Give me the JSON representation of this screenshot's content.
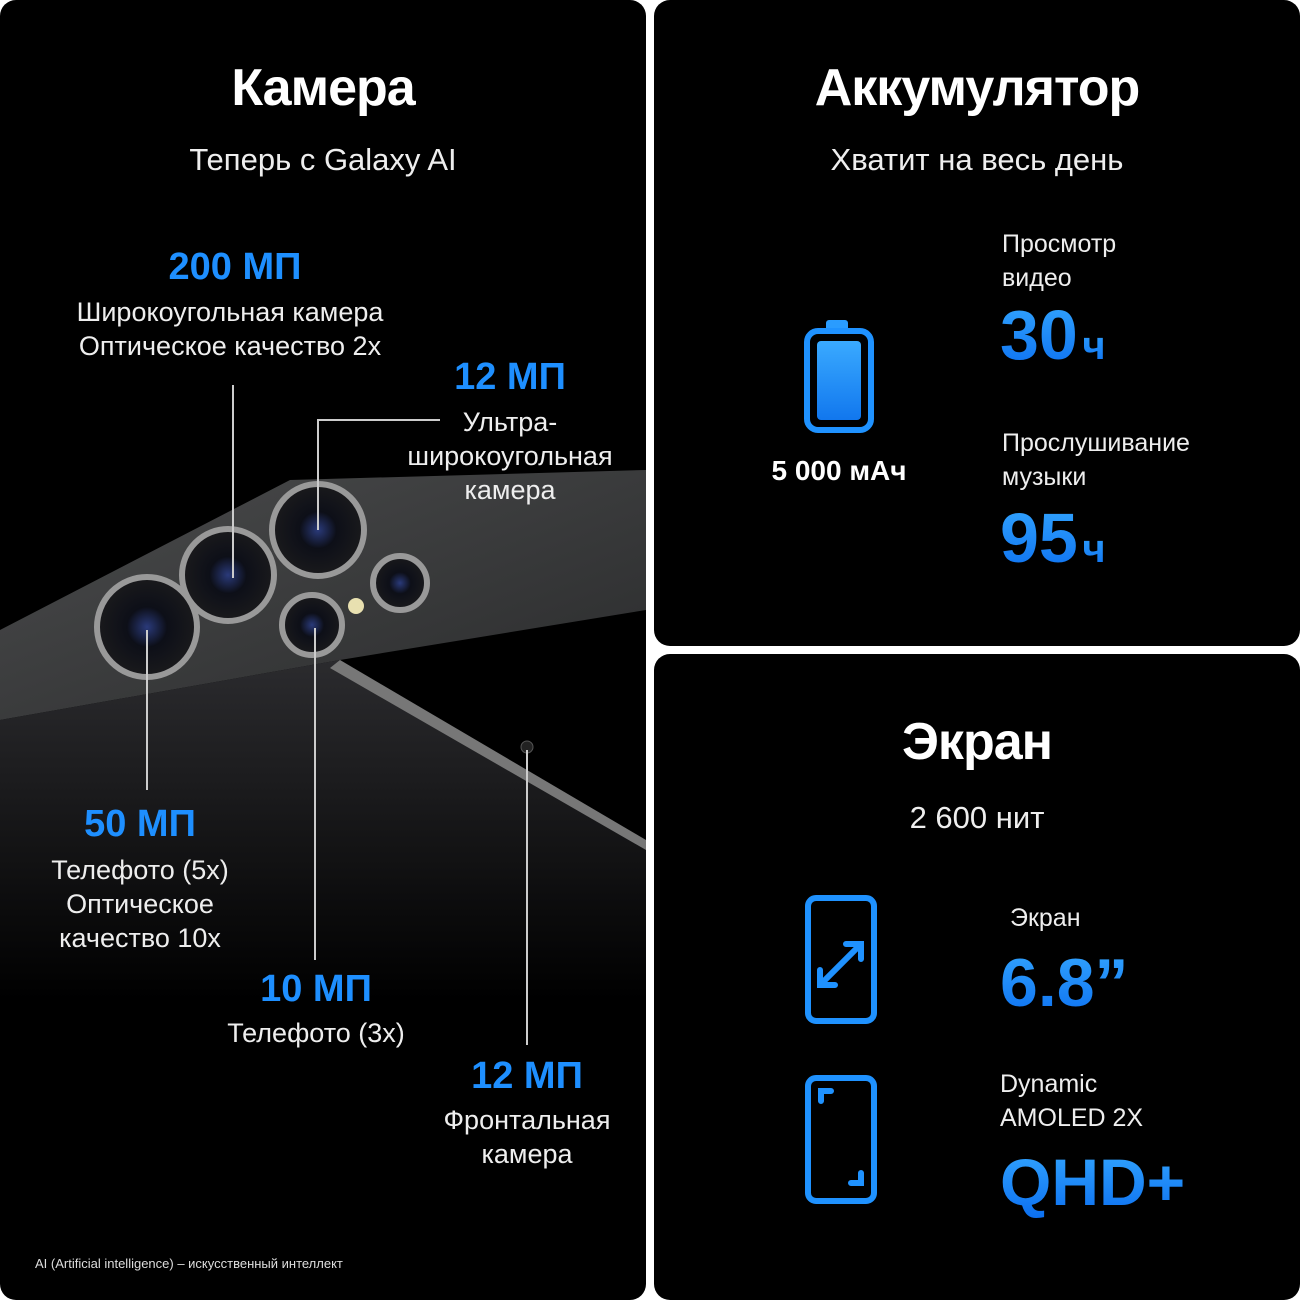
{
  "accent_color": "#1e8fff",
  "camera": {
    "title": "Камера",
    "subtitle": "Теперь с Galaxy AI",
    "specs": [
      {
        "value": "200 МП",
        "lines": [
          "Широкоугольная камера",
          "Оптическое качество 2x"
        ]
      },
      {
        "value": "12 МП",
        "lines": [
          "Ультра-",
          "широкоугольная",
          "камера"
        ]
      },
      {
        "value": "50 МП",
        "lines": [
          "Телефото (5x)",
          "Оптическое",
          "качество 10x"
        ]
      },
      {
        "value": "10 МП",
        "lines": [
          "Телефото (3x)"
        ]
      },
      {
        "value": "12 МП",
        "lines": [
          "Фронтальная",
          "камера"
        ]
      }
    ],
    "footnote": "AI (Artificial intelligence) – искусственный интеллект"
  },
  "battery": {
    "title": "Аккумулятор",
    "subtitle": "Хватит на весь день",
    "icon": "battery-full-icon",
    "capacity": "5 000 мАч",
    "video_label": [
      "Просмотр",
      "видео"
    ],
    "video_value": "30",
    "music_label": [
      "Прослушивание",
      "музыки"
    ],
    "music_value": "95",
    "unit": "ч"
  },
  "screen": {
    "title": "Экран",
    "subtitle": "2 600 нит",
    "size_label": "Экран",
    "size_value": "6.8”",
    "type_label": [
      "Dynamic",
      "AMOLED 2X"
    ],
    "resolution": "QHD+",
    "icons": [
      "screen-size-icon",
      "screen-resolution-icon"
    ]
  }
}
